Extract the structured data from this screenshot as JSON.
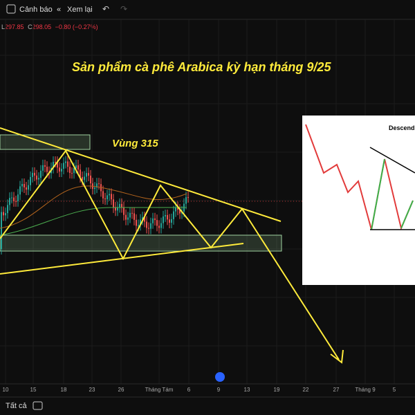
{
  "toolbar": {
    "alert": "Cảnh báo",
    "replay": "Xem lại"
  },
  "ohlc": {
    "low_label": "L",
    "low": "297.85",
    "close_label": "C",
    "close": "298.05",
    "change": "−0.80 (−0.27%)"
  },
  "annotations": {
    "title": "Sản phẩm cà phê Arabica kỳ hạn tháng 9/25",
    "zone": "Vùng 315"
  },
  "inset": {
    "title": "Descend"
  },
  "x_axis": {
    "labels": [
      "10",
      "15",
      "18",
      "23",
      "26",
      "Tháng Tám",
      "6",
      "9",
      "13",
      "19",
      "22",
      "27",
      "Tháng 9",
      "5"
    ]
  },
  "footer": {
    "range": "Tất cả"
  }
}
